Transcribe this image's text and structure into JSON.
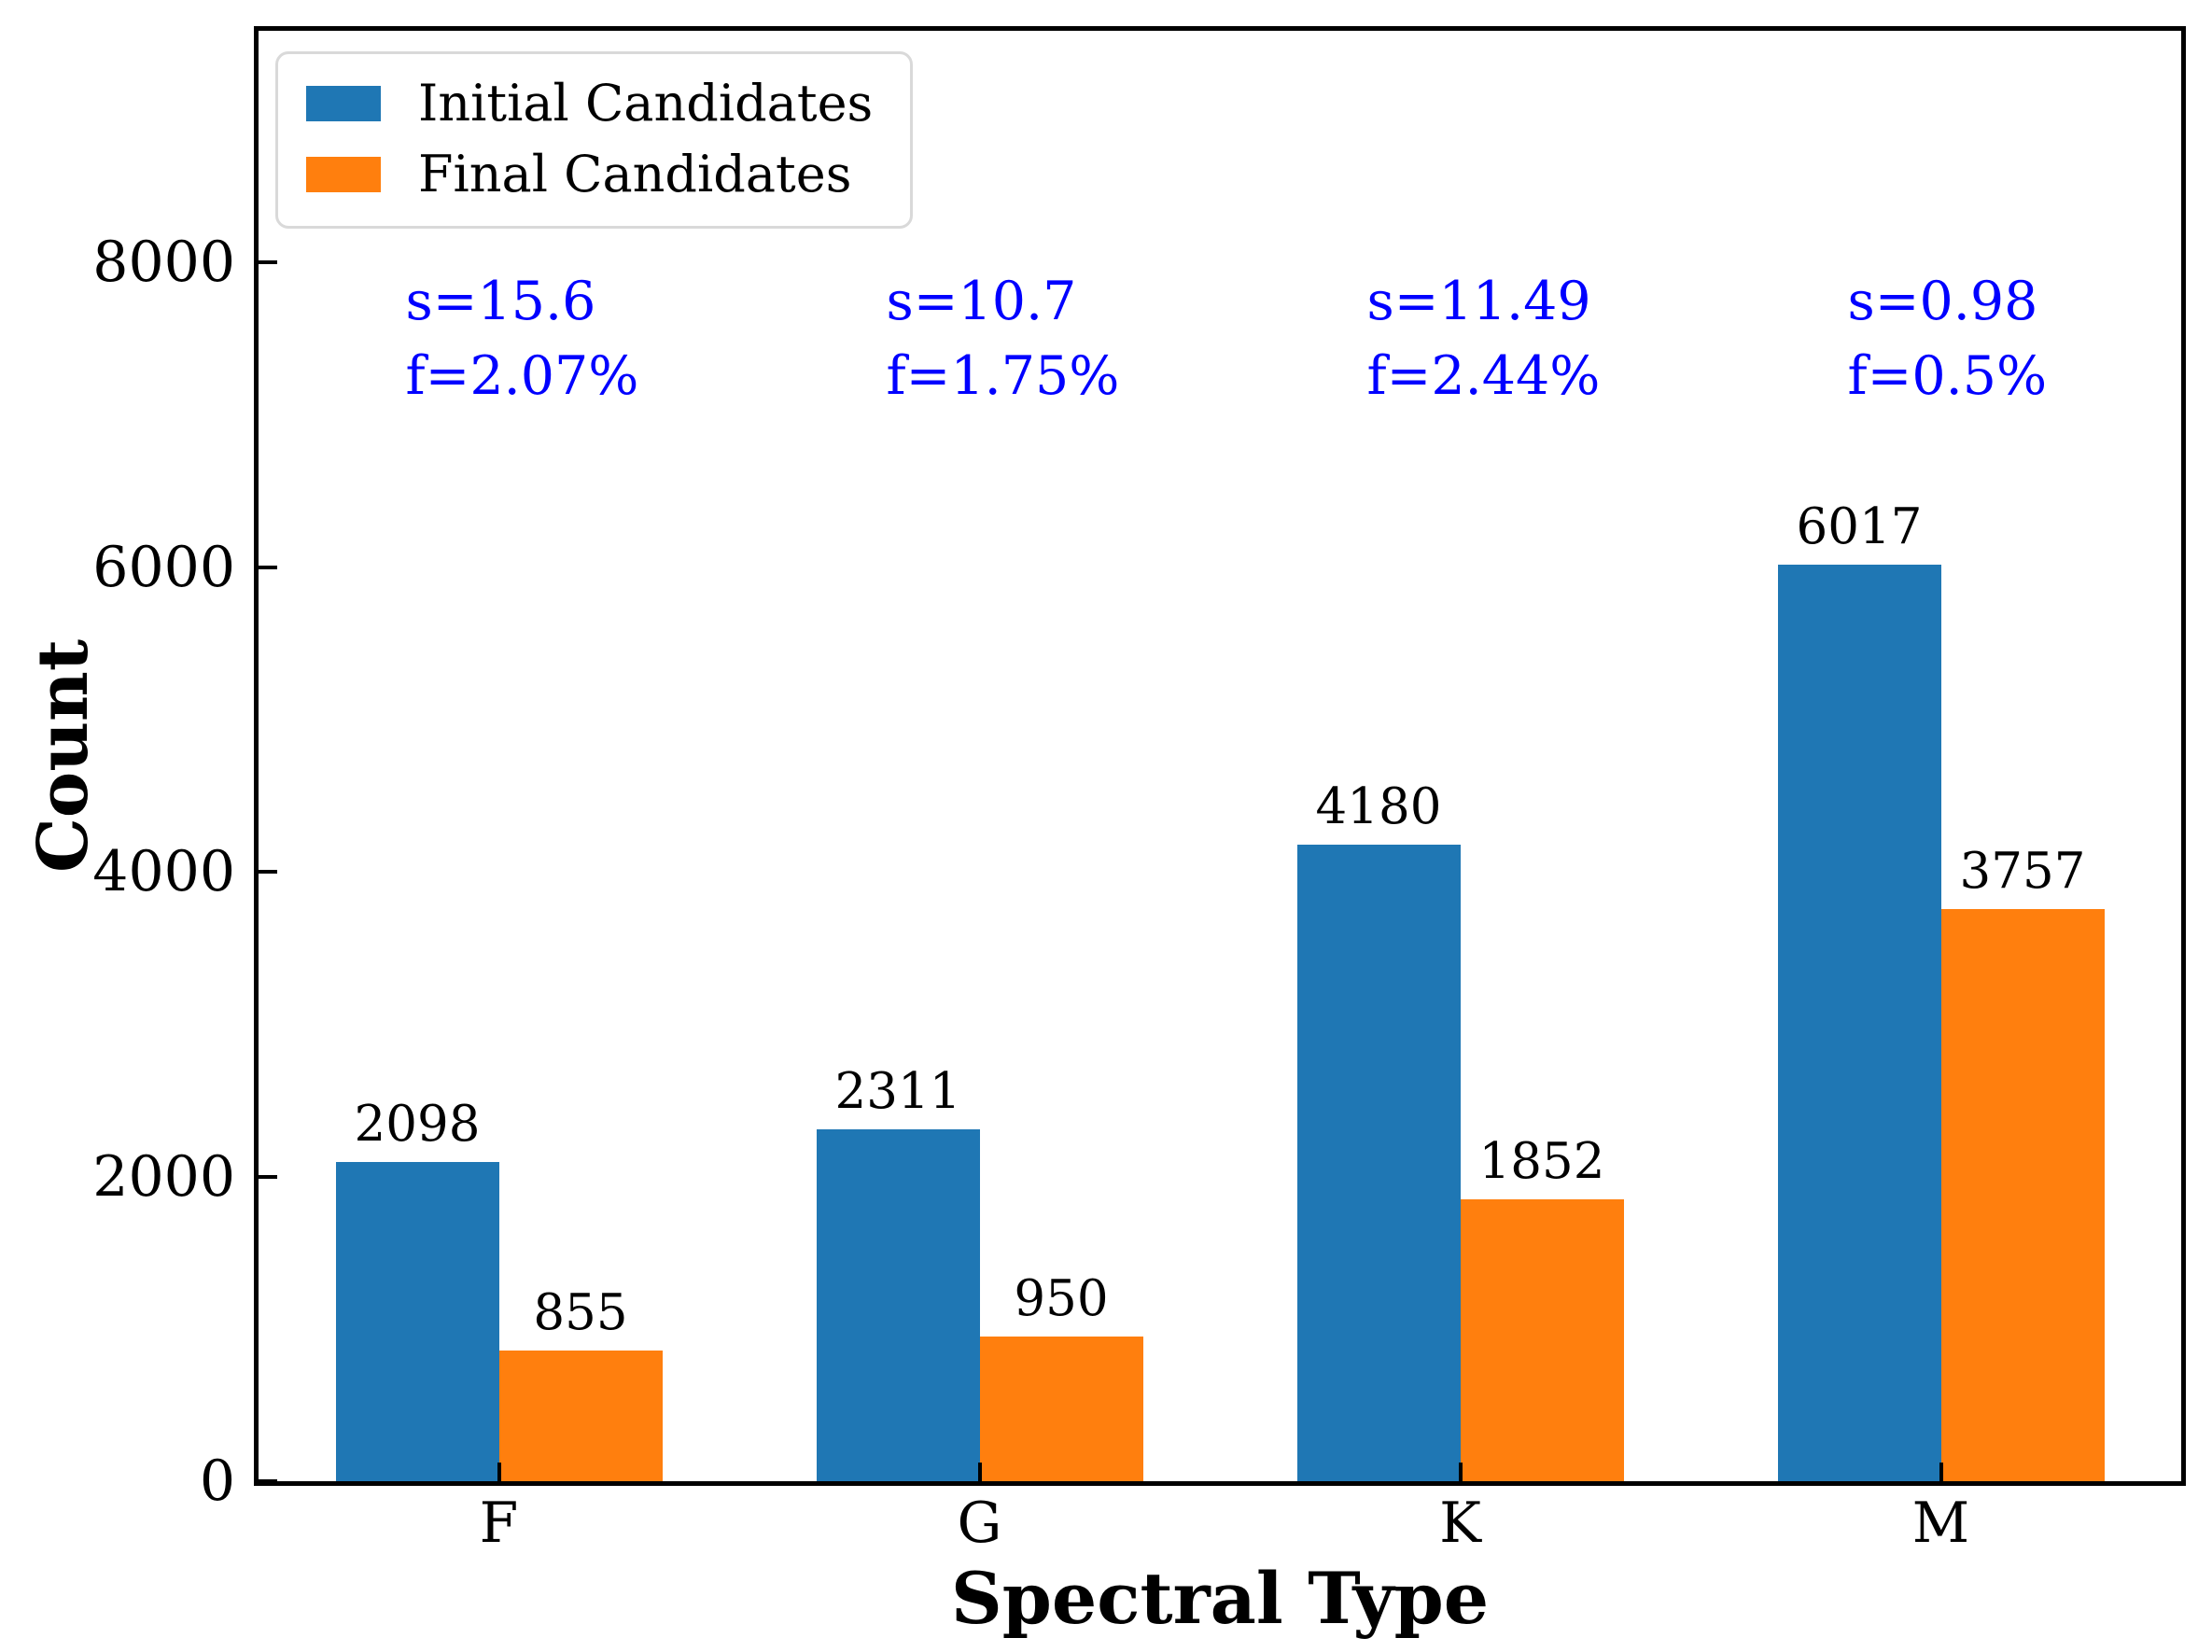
{
  "chart_data": {
    "type": "bar",
    "title": "",
    "xlabel": "Spectral Type",
    "ylabel": "Count",
    "categories": [
      "F",
      "G",
      "K",
      "M"
    ],
    "series": [
      {
        "name": "Initial Candidates",
        "color": "#1f77b4",
        "values": [
          2098,
          2311,
          4180,
          6017
        ]
      },
      {
        "name": "Final Candidates",
        "color": "#ff7f0e",
        "values": [
          855,
          950,
          1852,
          3757
        ]
      }
    ],
    "bar_value_labels": {
      "initial": [
        "2098",
        "2311",
        "4180",
        "6017"
      ],
      "final": [
        "855",
        "950",
        "1852",
        "3757"
      ]
    },
    "annotations": [
      {
        "line1": "s=15.6",
        "line2": "f=2.07%"
      },
      {
        "line1": "s=10.7",
        "line2": "f=1.75%"
      },
      {
        "line1": "s=11.49",
        "line2": "f=2.44%"
      },
      {
        "line1": "s=0.98",
        "line2": "f=0.5%"
      }
    ],
    "annotation_color": "#0000ff",
    "yticks": [
      0,
      2000,
      4000,
      6000,
      8000
    ],
    "ylim": [
      0,
      9520
    ],
    "grid": false,
    "legend_position": "upper left",
    "axis_color": "#000000"
  }
}
